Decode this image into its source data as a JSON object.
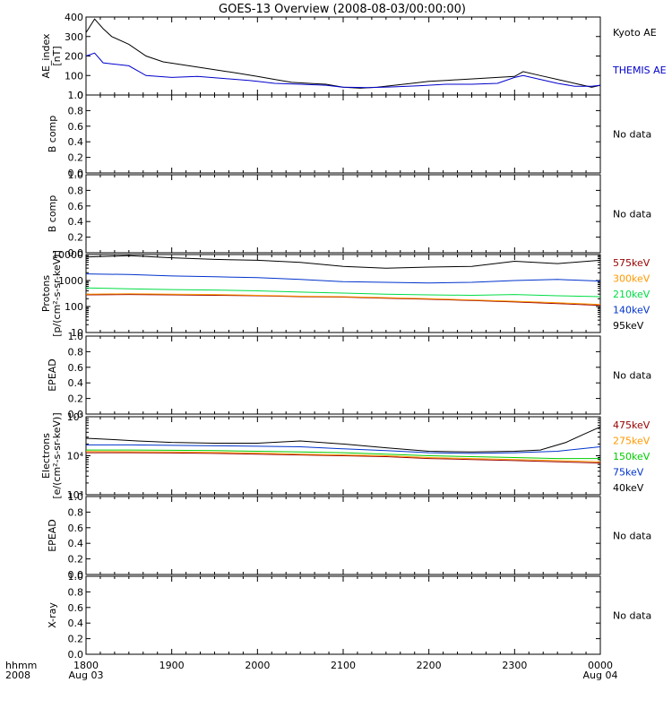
{
  "title": "GOES-13 Overview (2008-08-03/00:00:00)",
  "time_axis": {
    "corner_label_1": "hhmm",
    "corner_label_2": "2008",
    "ticks": [
      {
        "hhmm": "1800",
        "date": "Aug 03"
      },
      {
        "hhmm": "1900",
        "date": ""
      },
      {
        "hhmm": "2000",
        "date": ""
      },
      {
        "hhmm": "2100",
        "date": ""
      },
      {
        "hhmm": "2200",
        "date": ""
      },
      {
        "hhmm": "2300",
        "date": ""
      },
      {
        "hhmm": "0000",
        "date": "Aug 04"
      }
    ]
  },
  "chart_data": [
    {
      "type": "line",
      "ylabel": [
        "AE_index",
        "[nT]"
      ],
      "ylim": [
        0,
        400
      ],
      "yticks": [
        "0",
        "100",
        "200",
        "300",
        "400"
      ],
      "series": [
        {
          "name": "Kyoto AE",
          "color": "#000000",
          "x": [
            18.0,
            18.1,
            18.2,
            18.3,
            18.5,
            18.7,
            18.9,
            19.2,
            19.5,
            19.8,
            20.0,
            20.2,
            20.4,
            20.6,
            20.8,
            21.0,
            21.2,
            21.4,
            21.6,
            21.8,
            22.0,
            22.2,
            22.4,
            22.6,
            22.8,
            23.0,
            23.1,
            23.3,
            23.5,
            23.7,
            23.9,
            24.0
          ],
          "y": [
            320,
            390,
            340,
            300,
            260,
            200,
            170,
            150,
            130,
            110,
            95,
            80,
            65,
            60,
            55,
            40,
            35,
            40,
            50,
            60,
            70,
            75,
            80,
            85,
            90,
            95,
            120,
            100,
            80,
            60,
            40,
            50
          ]
        },
        {
          "name": "THEMIS AE",
          "color": "#0000cc",
          "x": [
            18.0,
            18.1,
            18.2,
            18.3,
            18.5,
            18.7,
            19.0,
            19.3,
            19.6,
            19.9,
            20.0,
            20.2,
            20.5,
            20.8,
            21.0,
            21.3,
            21.6,
            21.9,
            22.2,
            22.5,
            22.8,
            23.0,
            23.1,
            23.3,
            23.5,
            23.7,
            23.9,
            24.0
          ],
          "y": [
            200,
            215,
            165,
            160,
            150,
            100,
            90,
            95,
            85,
            75,
            70,
            60,
            55,
            50,
            40,
            38,
            42,
            48,
            55,
            55,
            60,
            90,
            100,
            80,
            60,
            45,
            45,
            50
          ]
        }
      ]
    },
    {
      "type": "line",
      "ylabel": [
        "B comp"
      ],
      "ylim": [
        0,
        1
      ],
      "yticks": [
        "0.0",
        "0.2",
        "0.4",
        "0.6",
        "0.8",
        "1.0"
      ],
      "series": [],
      "note": "No data"
    },
    {
      "type": "line",
      "ylabel": [
        "B comp"
      ],
      "ylim": [
        0,
        1
      ],
      "yticks": [
        "0.0",
        "0.2",
        "0.4",
        "0.6",
        "0.8",
        "1.0"
      ],
      "series": [],
      "note": "No data"
    },
    {
      "type": "line",
      "scale": "log",
      "ylabel": [
        "Protons",
        "[p/(cm²-s-sr-keV)]"
      ],
      "ylim": [
        10,
        10000
      ],
      "yticks": [
        "10",
        "100",
        "1000",
        "10000"
      ],
      "series": [
        {
          "name": "575keV",
          "color": "#990000",
          "x": [
            18.0,
            18.5,
            19.0,
            19.5,
            20.0,
            20.5,
            21.0,
            21.5,
            22.0,
            22.5,
            23.0,
            23.5,
            24.0
          ],
          "y": [
            280,
            290,
            280,
            270,
            260,
            240,
            230,
            210,
            190,
            170,
            150,
            130,
            110
          ]
        },
        {
          "name": "300keV",
          "color": "#ff9900",
          "x": [
            18.0,
            18.5,
            19.0,
            19.5,
            20.0,
            20.5,
            21.0,
            21.5,
            22.0,
            22.5,
            23.0,
            23.5,
            24.0
          ],
          "y": [
            300,
            310,
            300,
            290,
            270,
            250,
            240,
            220,
            200,
            180,
            160,
            140,
            120
          ]
        },
        {
          "name": "210keV",
          "color": "#00dd44",
          "x": [
            18.0,
            18.5,
            19.0,
            19.5,
            20.0,
            20.5,
            21.0,
            21.5,
            22.0,
            22.5,
            23.0,
            23.5,
            24.0
          ],
          "y": [
            520,
            480,
            450,
            430,
            400,
            360,
            330,
            300,
            280,
            270,
            290,
            260,
            240
          ]
        },
        {
          "name": "140keV",
          "color": "#0033cc",
          "x": [
            18.0,
            18.5,
            19.0,
            19.5,
            20.0,
            20.5,
            21.0,
            21.5,
            22.0,
            22.5,
            23.0,
            23.5,
            24.0
          ],
          "y": [
            1800,
            1700,
            1500,
            1400,
            1300,
            1100,
            900,
            850,
            800,
            850,
            1000,
            1100,
            950
          ]
        },
        {
          "name": "95keV",
          "color": "#000000",
          "x": [
            18.0,
            18.5,
            19.0,
            19.5,
            20.0,
            20.5,
            21.0,
            21.5,
            22.0,
            22.5,
            23.0,
            23.5,
            24.0
          ],
          "y": [
            8000,
            9000,
            7500,
            6500,
            6000,
            5000,
            3500,
            3000,
            3300,
            3500,
            5500,
            4500,
            6000
          ]
        }
      ]
    },
    {
      "type": "line",
      "ylabel": [
        "EPEAD"
      ],
      "ylim": [
        0,
        1
      ],
      "yticks": [
        "0.0",
        "0.2",
        "0.4",
        "0.6",
        "0.8",
        "1.0"
      ],
      "series": [],
      "note": "No data"
    },
    {
      "type": "line",
      "scale": "log",
      "ylabel": [
        "Electrons",
        "[e/(cm²-s-sr-keV)]"
      ],
      "ylim": [
        1000,
        100000
      ],
      "yticks": [
        "10³",
        "10⁴",
        "10⁵"
      ],
      "series": [
        {
          "name": "475keV",
          "color": "#990000",
          "x": [
            18.0,
            18.5,
            19.0,
            19.5,
            20.0,
            20.5,
            21.0,
            21.5,
            22.0,
            22.5,
            23.0,
            23.5,
            24.0
          ],
          "y": [
            12000,
            12000,
            11800,
            11500,
            11000,
            10500,
            10000,
            9500,
            8500,
            8000,
            7500,
            7000,
            6500
          ]
        },
        {
          "name": "275keV",
          "color": "#ff9900",
          "x": [
            18.0,
            18.5,
            19.0,
            19.5,
            20.0,
            20.5,
            21.0,
            21.5,
            22.0,
            22.5,
            23.0,
            23.5,
            24.0
          ],
          "y": [
            12800,
            12700,
            12500,
            12200,
            11700,
            11000,
            10500,
            10000,
            9000,
            8500,
            8000,
            7500,
            7000
          ]
        },
        {
          "name": "150keV",
          "color": "#00cc00",
          "x": [
            18.0,
            18.5,
            19.0,
            19.5,
            20.0,
            20.5,
            21.0,
            21.5,
            22.0,
            22.5,
            23.0,
            23.5,
            24.0
          ],
          "y": [
            14000,
            14000,
            13800,
            13500,
            13000,
            12500,
            12000,
            11000,
            10000,
            9500,
            9000,
            8500,
            8500
          ]
        },
        {
          "name": "75keV",
          "color": "#0033cc",
          "x": [
            18.0,
            18.5,
            19.0,
            19.5,
            20.0,
            20.5,
            21.0,
            21.5,
            22.0,
            22.5,
            23.0,
            23.5,
            24.0
          ],
          "y": [
            19000,
            19000,
            18500,
            18000,
            17500,
            17000,
            15000,
            13500,
            12000,
            11500,
            12000,
            13000,
            17000
          ]
        },
        {
          "name": "40keV",
          "color": "#000000",
          "x": [
            18.0,
            18.3,
            18.6,
            19.0,
            19.5,
            20.0,
            20.5,
            21.0,
            21.5,
            22.0,
            22.5,
            23.0,
            23.3,
            23.6,
            23.8,
            24.0
          ],
          "y": [
            28000,
            26000,
            24000,
            22000,
            21000,
            21000,
            24000,
            20000,
            16000,
            13000,
            12500,
            13000,
            14000,
            22000,
            35000,
            55000
          ]
        }
      ]
    },
    {
      "type": "line",
      "ylabel": [
        "EPEAD"
      ],
      "ylim": [
        0,
        1
      ],
      "yticks": [
        "0.0",
        "0.2",
        "0.4",
        "0.6",
        "0.8",
        "1.0"
      ],
      "series": [],
      "note": "No data"
    },
    {
      "type": "line",
      "ylabel": [
        "X-ray"
      ],
      "ylim": [
        0,
        1
      ],
      "yticks": [
        "0.0",
        "0.2",
        "0.4",
        "0.6",
        "0.8",
        "1.0"
      ],
      "series": [],
      "note": "No data"
    }
  ]
}
